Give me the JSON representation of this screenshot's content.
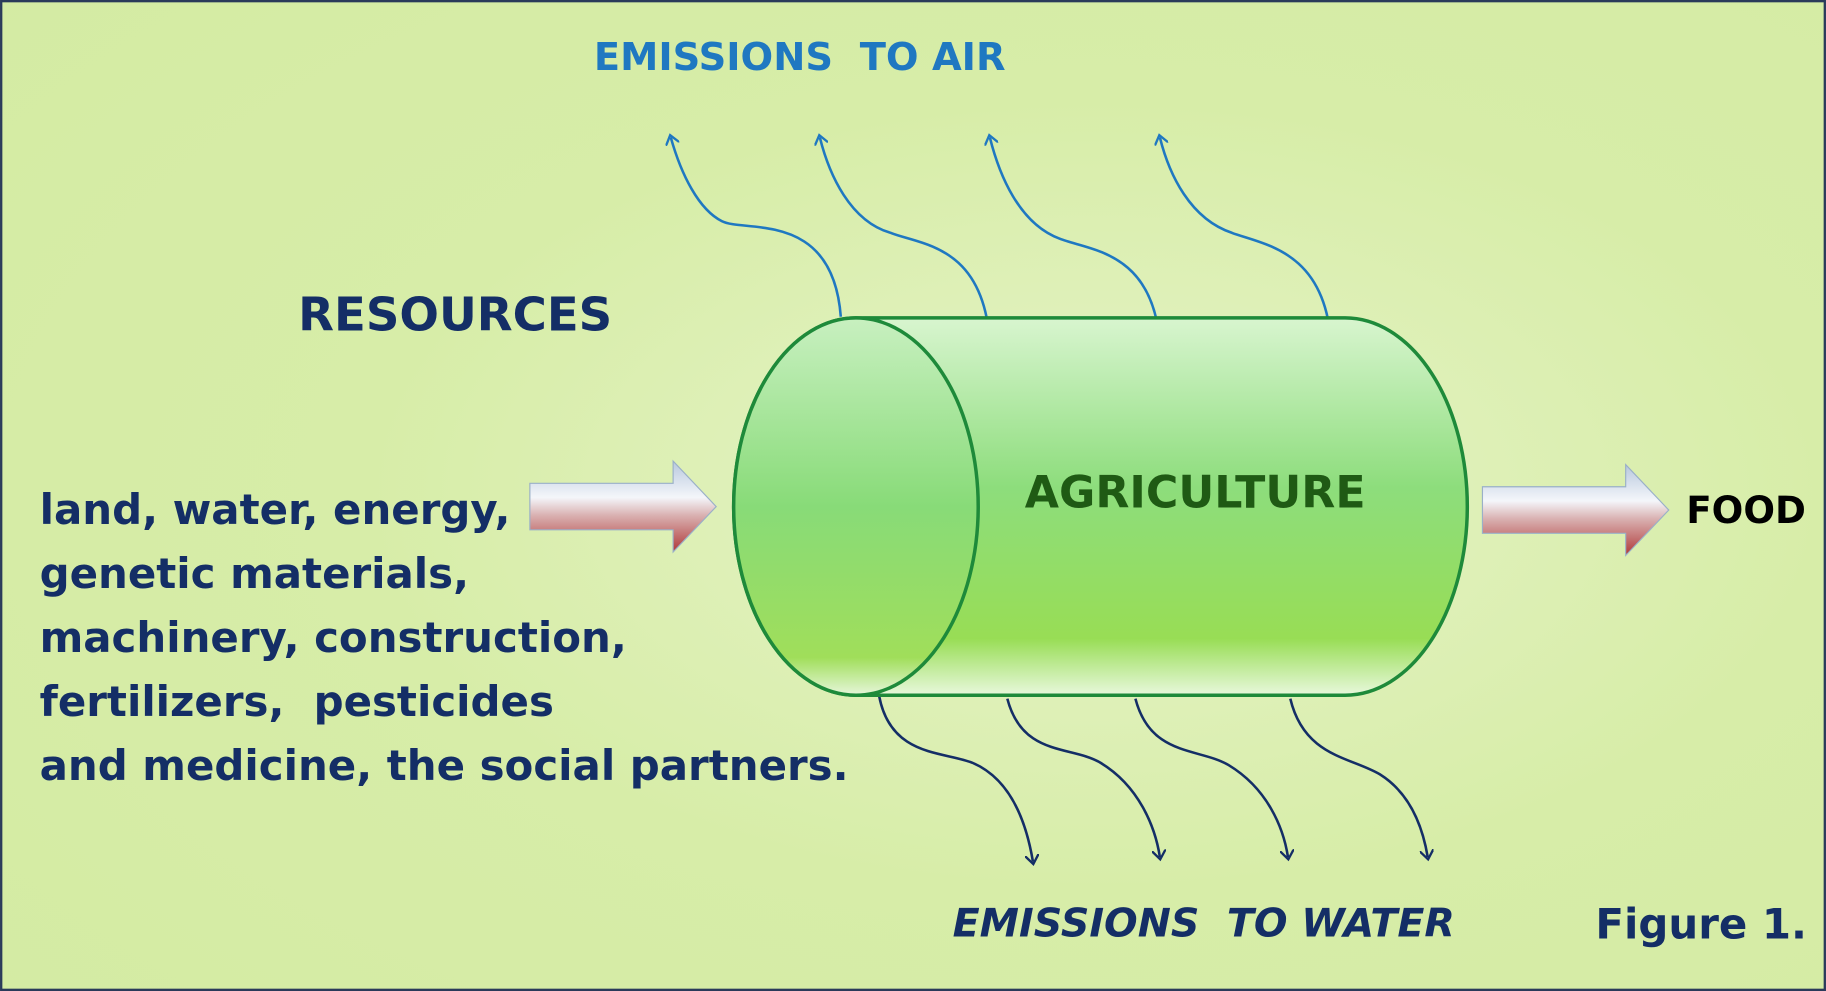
{
  "emissions_air": "EMISSIONS  TO AIR",
  "resources": {
    "title": "RESOURCES",
    "lines": [
      "land, water, energy,",
      "genetic materials,",
      "machinery, construction,",
      "fertilizers,  pesticides",
      "and medicine, the social partners."
    ]
  },
  "process": "AGRICULTURE",
  "output": "FOOD",
  "emissions_water": "EMISSIONS  TO WATER",
  "caption": "Figure 1."
}
